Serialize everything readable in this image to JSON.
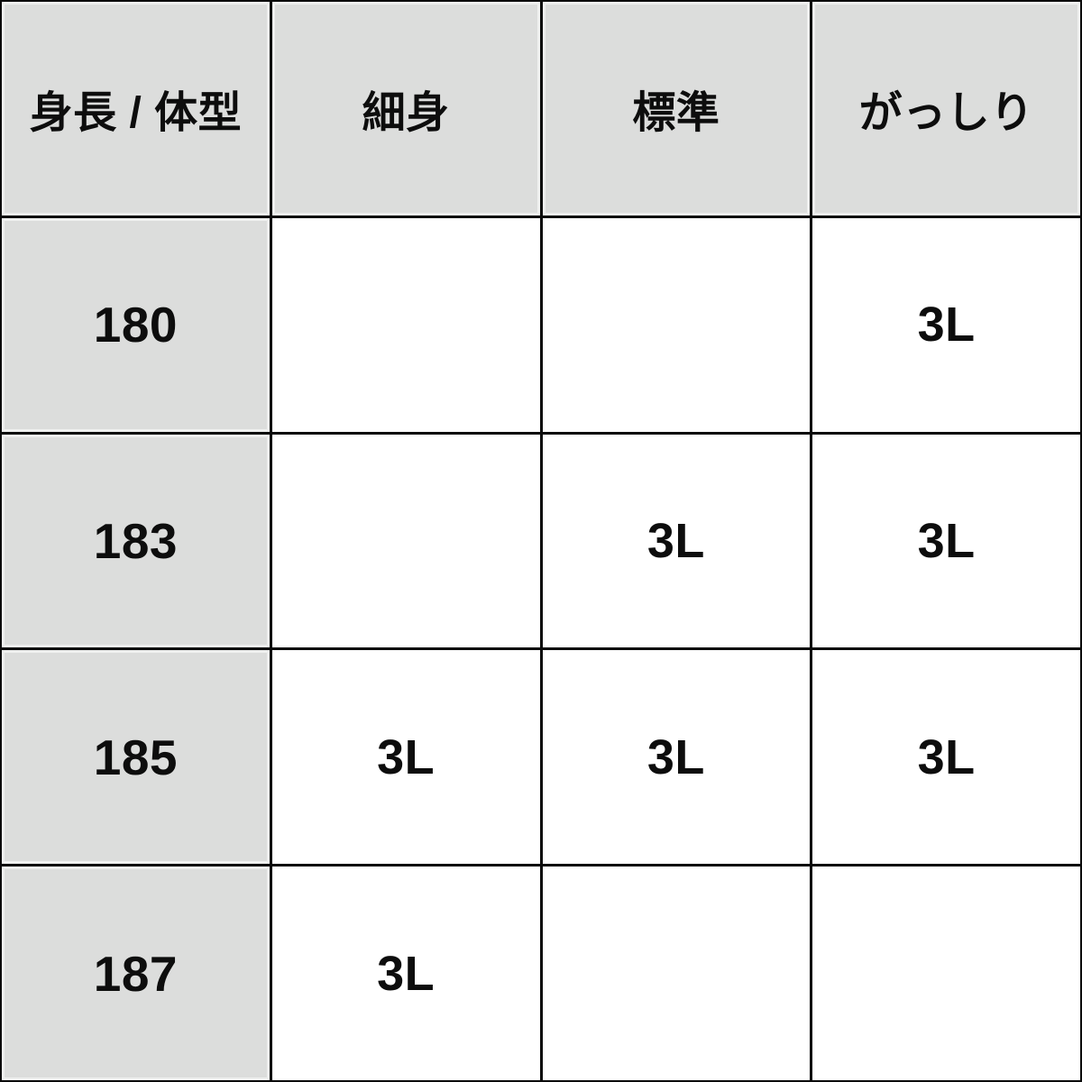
{
  "table": {
    "header": {
      "corner": "身長 / 体型",
      "columns": [
        "細身",
        "標準",
        "がっしり"
      ]
    },
    "rows": [
      {
        "height": "180",
        "cells": [
          "",
          "",
          "3L"
        ]
      },
      {
        "height": "183",
        "cells": [
          "",
          "3L",
          "3L"
        ]
      },
      {
        "height": "185",
        "cells": [
          "3L",
          "3L",
          "3L"
        ]
      },
      {
        "height": "187",
        "cells": [
          "3L",
          "",
          ""
        ]
      }
    ],
    "colors": {
      "header_bg": "#dcdddc",
      "body_bg": "#ffffff",
      "border": "#0a0a0a",
      "text": "#0d0d0d"
    }
  }
}
